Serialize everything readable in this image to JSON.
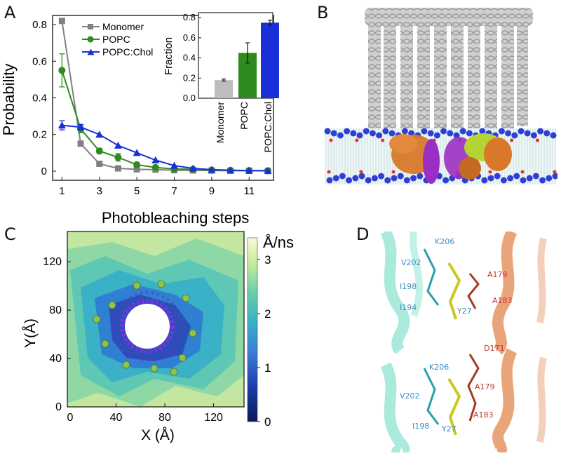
{
  "panels": {
    "a": "A",
    "b": "B",
    "c": "C",
    "d": "D"
  },
  "panel_a": {
    "xlabel": "Photobleaching steps",
    "ylabel": "Probability",
    "x_ticks": [
      "1",
      "3",
      "5",
      "7",
      "9",
      "11"
    ],
    "y_ticks": [
      "0",
      "0.2",
      "0.4",
      "0.6",
      "0.8"
    ],
    "legend": [
      "Monomer",
      "POPC",
      "POPC:Chol"
    ],
    "inset": {
      "ylabel": "Fraction",
      "y_ticks": [
        "0.0",
        "0.2",
        "0.4",
        "0.6",
        "0.8"
      ],
      "categories": [
        "Monomer",
        "POPC",
        "POPC:Chol"
      ]
    }
  },
  "chart_data": [
    {
      "type": "line",
      "xlabel": "Photobleaching steps",
      "ylabel": "Probability",
      "xlim": [
        0.5,
        12.3
      ],
      "ylim": [
        -0.05,
        0.85
      ],
      "x": [
        1,
        2,
        3,
        4,
        5,
        6,
        7,
        8,
        9,
        10,
        11,
        12
      ],
      "series": [
        {
          "name": "Monomer",
          "color": "#808080",
          "marker": "square",
          "values": [
            0.82,
            0.15,
            0.04,
            0.015,
            0.01,
            0.008,
            0.005,
            0.004,
            0.003,
            0.002,
            0.002,
            0.001
          ]
        },
        {
          "name": "POPC",
          "color": "#2e8b1e",
          "marker": "circle",
          "values": [
            0.55,
            0.23,
            0.11,
            0.075,
            0.035,
            0.02,
            0.012,
            0.01,
            0.006,
            0.004,
            0.003,
            0.002
          ],
          "errors": [
            0.09,
            0.02,
            0.015,
            0.02,
            0.008,
            0.005,
            0.004,
            0.003,
            0.002,
            0.002,
            0.002,
            0.001
          ]
        },
        {
          "name": "POPC:Chol",
          "color": "#1a2fd8",
          "marker": "triangle",
          "values": [
            0.25,
            0.24,
            0.2,
            0.14,
            0.1,
            0.06,
            0.03,
            0.015,
            0.008,
            0.005,
            0.003,
            0.002
          ],
          "errors": [
            0.025,
            0.015,
            0.01,
            0.01,
            0.008,
            0.005,
            0.003,
            0.002,
            0.002,
            0.001,
            0.001,
            0.001
          ]
        }
      ],
      "inset": {
        "type": "bar",
        "ylabel": "Fraction",
        "ylim": [
          0,
          0.85
        ],
        "categories": [
          "Monomer",
          "POPC",
          "POPC:Chol"
        ],
        "values": [
          0.18,
          0.45,
          0.75
        ],
        "errors": [
          0.01,
          0.1,
          0.025
        ],
        "colors": [
          "#bdbdbd",
          "#2e8b1e",
          "#1a2fd8"
        ]
      }
    },
    {
      "type": "heatmap",
      "xlabel": "X (Å)",
      "ylabel": "Y(Å)",
      "xlim": [
        0,
        145
      ],
      "ylim": [
        0,
        145
      ],
      "x_ticks": [
        "0",
        "40",
        "80",
        "120"
      ],
      "y_ticks": [
        "0",
        "40",
        "80",
        "120"
      ],
      "colorbar": {
        "label": "Å/ns",
        "ticks": [
          "0",
          "1",
          "2",
          "3"
        ],
        "range": [
          0,
          3.4
        ]
      }
    }
  ],
  "panel_c": {
    "xlabel": "X (Å)",
    "ylabel": "Y(Å)",
    "x_ticks": [
      "0",
      "40",
      "80",
      "120"
    ],
    "y_ticks": [
      "0",
      "40",
      "80",
      "120"
    ],
    "colorbar_label": "Å/ns",
    "colorbar_ticks": [
      "0",
      "1",
      "2",
      "3"
    ]
  },
  "panel_d": {
    "top_labels": {
      "k206": "K206",
      "v202": "V202",
      "i198": "I198",
      "i194": "I194",
      "a179": "A179",
      "a183": "A183",
      "y27": "Y27"
    },
    "bottom_labels": {
      "k206": "K206",
      "d171": "D171",
      "v202": "V202",
      "a179": "A179",
      "a183": "A183",
      "i198": "I198",
      "y27": "Y27"
    },
    "colors": {
      "left_residue": "#3a8fc9",
      "right_residue": "#c0392b"
    }
  }
}
